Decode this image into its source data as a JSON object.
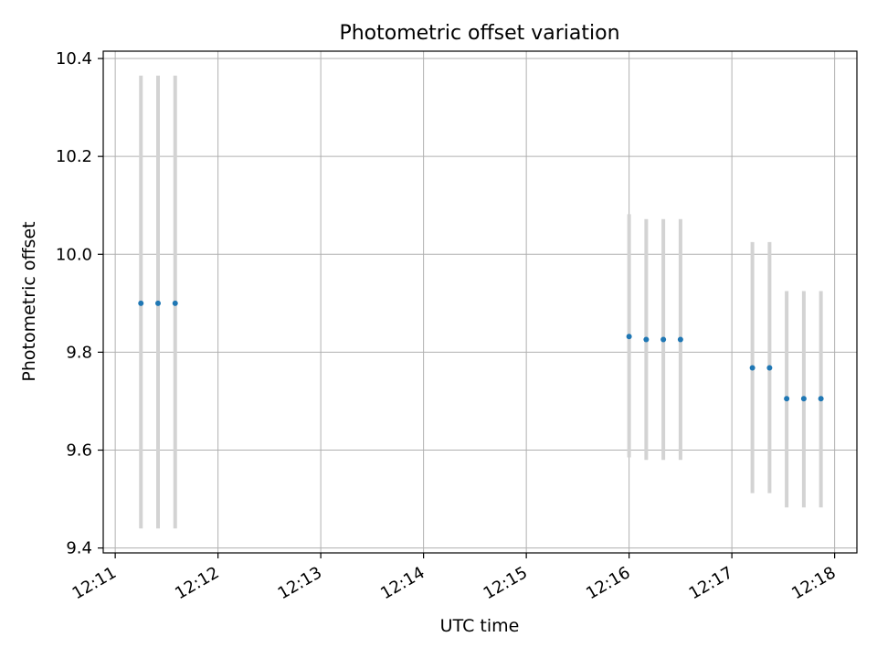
{
  "chart_data": {
    "type": "scatter",
    "title": "Photometric offset variation",
    "xlabel": "UTC time",
    "ylabel": "Photometric offset",
    "xlim": [
      "12:10:53",
      "12:18:13"
    ],
    "ylim": [
      9.39,
      10.415
    ],
    "x_ticks": [
      "12:11",
      "12:12",
      "12:13",
      "12:14",
      "12:15",
      "12:16",
      "12:17",
      "12:18"
    ],
    "y_ticks": [
      "9.4",
      "9.6",
      "9.8",
      "10.0",
      "10.2",
      "10.4"
    ],
    "grid": true,
    "colors": {
      "marker": "#1f77b4",
      "errorbar": "#d3d3d3",
      "grid": "#b0b0b0"
    },
    "points": [
      {
        "x": "12:11:15",
        "y": 9.9,
        "yerr_low": 9.44,
        "yerr_high": 10.365
      },
      {
        "x": "12:11:25",
        "y": 9.9,
        "yerr_low": 9.44,
        "yerr_high": 10.365
      },
      {
        "x": "12:11:35",
        "y": 9.9,
        "yerr_low": 9.44,
        "yerr_high": 10.365
      },
      {
        "x": "12:16:00",
        "y": 9.832,
        "yerr_low": 9.585,
        "yerr_high": 10.082
      },
      {
        "x": "12:16:10",
        "y": 9.826,
        "yerr_low": 9.58,
        "yerr_high": 10.072
      },
      {
        "x": "12:16:20",
        "y": 9.826,
        "yerr_low": 9.58,
        "yerr_high": 10.072
      },
      {
        "x": "12:16:30",
        "y": 9.826,
        "yerr_low": 9.58,
        "yerr_high": 10.072
      },
      {
        "x": "12:17:12",
        "y": 9.768,
        "yerr_low": 9.512,
        "yerr_high": 10.025
      },
      {
        "x": "12:17:22",
        "y": 9.768,
        "yerr_low": 9.512,
        "yerr_high": 10.025
      },
      {
        "x": "12:17:32",
        "y": 9.705,
        "yerr_low": 9.483,
        "yerr_high": 9.925
      },
      {
        "x": "12:17:42",
        "y": 9.705,
        "yerr_low": 9.483,
        "yerr_high": 9.925
      },
      {
        "x": "12:17:52",
        "y": 9.705,
        "yerr_low": 9.483,
        "yerr_high": 9.925
      }
    ]
  }
}
